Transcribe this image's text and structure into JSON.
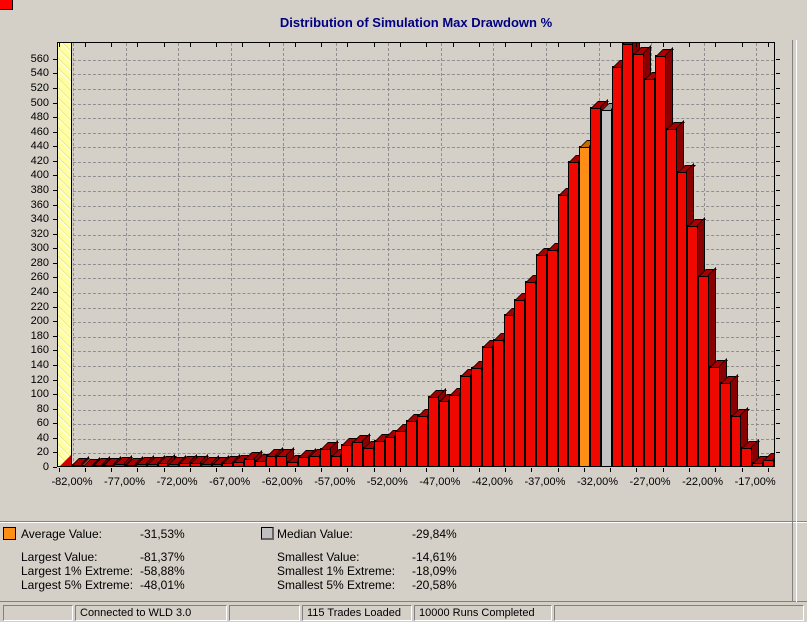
{
  "title": "Distribution of Simulation Max Drawdown %",
  "chart_data": {
    "type": "bar",
    "title": "Distribution of Simulation Max Drawdown %",
    "xlabel": "",
    "ylabel": "",
    "y_axis": {
      "min": 0,
      "max": 583,
      "tick_step": 20,
      "tick_labels": [
        "0",
        "20",
        "40",
        "60",
        "80",
        "100",
        "120",
        "140",
        "160",
        "180",
        "200",
        "220",
        "240",
        "260",
        "280",
        "300",
        "320",
        "340",
        "360",
        "380",
        "400",
        "420",
        "440",
        "460",
        "480",
        "500",
        "520",
        "540",
        "560"
      ]
    },
    "x_axis": {
      "tick_labels": [
        "-82,00%",
        "-77,00%",
        "-72,00%",
        "-67,00%",
        "-62,00%",
        "-57,00%",
        "-52,00%",
        "-47,00%",
        "-42,00%",
        "-37,00%",
        "-32,00%",
        "-27,00%",
        "-22,00%",
        "-17,00%"
      ],
      "bin_width_pct": 1,
      "range_start_pct": -83,
      "range_end_pct": -14
    },
    "grid": true,
    "legend_position": "below",
    "values": [
      3,
      2,
      3,
      3,
      4,
      3,
      4,
      4,
      5,
      4,
      5,
      5,
      4,
      4,
      6,
      7,
      11,
      8,
      15,
      15,
      7,
      14,
      15,
      25,
      15,
      30,
      34,
      26,
      36,
      41,
      50,
      63,
      70,
      96,
      91,
      99,
      125,
      136,
      165,
      174,
      209,
      229,
      254,
      291,
      298,
      373,
      419,
      439,
      493,
      490,
      549,
      585,
      566,
      532,
      564,
      463,
      405,
      330,
      262,
      137,
      115,
      70,
      26,
      6,
      10
    ],
    "highlight": {
      "average_bar_index": 47,
      "median_bar_index": 49
    },
    "colors": {
      "bar_front": "#ee0800",
      "bar_dark": "#8a0000",
      "average_bar": "#ff8e17",
      "median_bar": "#c3c3c3",
      "wall": "#ffffa2",
      "title": "#000080"
    }
  },
  "legend": {
    "left": [
      {
        "swatch": "average",
        "label": "Average Value:",
        "value": "-31,53%"
      },
      {
        "swatch": null,
        "label": "Largest Value:",
        "value": "-81,37%"
      },
      {
        "swatch": null,
        "label": "Largest 1% Extreme:",
        "value": "-58,88%"
      },
      {
        "swatch": null,
        "label": "Largest 5% Extreme:",
        "value": "-48,01%"
      }
    ],
    "right": [
      {
        "swatch": "median",
        "label": "Median Value:",
        "value": "-29,84%"
      },
      {
        "swatch": null,
        "label": "Smallest Value:",
        "value": "-14,61%"
      },
      {
        "swatch": null,
        "label": "Smallest 1% Extreme:",
        "value": "-18,09%"
      },
      {
        "swatch": null,
        "label": "Smallest 5% Extreme:",
        "value": "-20,58%"
      }
    ]
  },
  "status_bar": {
    "panels": [
      {
        "text": ""
      },
      {
        "text": "Connected to WLD 3.0"
      },
      {
        "text": ""
      },
      {
        "text": "115 Trades Loaded"
      },
      {
        "text": "10000 Runs Completed"
      },
      {
        "text": ""
      }
    ]
  }
}
